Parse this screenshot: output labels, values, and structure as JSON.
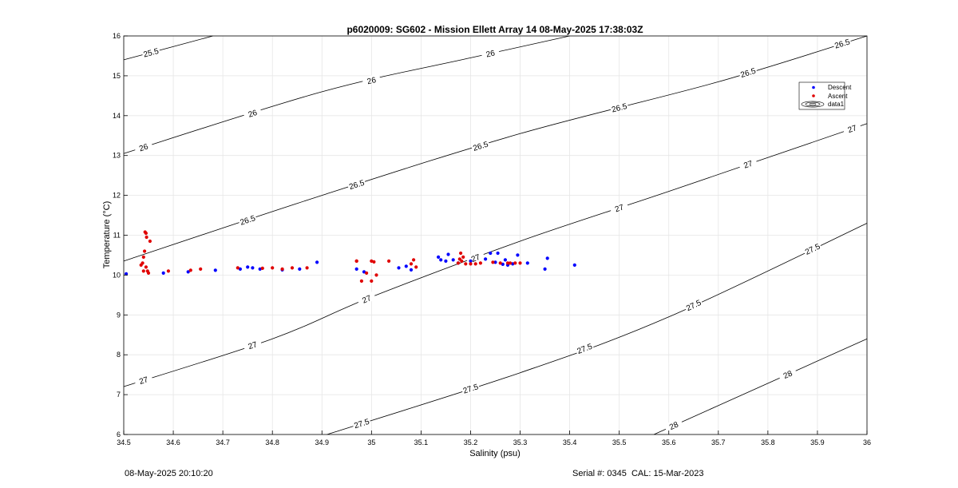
{
  "chart_data": {
    "type": "scatter",
    "title": "p6020009: SG602 - Mission Ellett Array 14 08-May-2025 17:38:03Z",
    "xlabel": "Salinity (psu)",
    "ylabel": "Temperature (°C)",
    "xlim": [
      34.5,
      36
    ],
    "ylim": [
      6,
      16
    ],
    "xticks": [
      34.5,
      34.6,
      34.7,
      34.8,
      34.9,
      35,
      35.1,
      35.2,
      35.3,
      35.4,
      35.5,
      35.6,
      35.7,
      35.8,
      35.9,
      36
    ],
    "xtick_labels": [
      "34.5",
      "34.6",
      "34.7",
      "34.8",
      "34.9",
      "35",
      "35.1",
      "35.2",
      "35.3",
      "35.4",
      "35.5",
      "35.6",
      "35.7",
      "35.8",
      "35.9",
      "36"
    ],
    "yticks": [
      6,
      7,
      8,
      9,
      10,
      11,
      12,
      13,
      14,
      15,
      16
    ],
    "ytick_labels": [
      "6",
      "7",
      "8",
      "9",
      "10",
      "11",
      "12",
      "13",
      "14",
      "15",
      "16"
    ],
    "grid": true,
    "legend": {
      "location": "top-right",
      "entries": [
        "Descent",
        "Ascent",
        "data1"
      ]
    },
    "colors": {
      "descent": "#0000ff",
      "ascent": "#e00000",
      "contour": "#000000",
      "grid": "#e6e6e6"
    },
    "contours": [
      {
        "label": "25.5",
        "value": 25.5,
        "points": [
          [
            34.5,
            15.4
          ],
          [
            34.68,
            16
          ]
        ],
        "label_at": [
          [
            34.555,
            15.55
          ]
        ]
      },
      {
        "label": "26",
        "value": 26,
        "points": [
          [
            34.5,
            13.05
          ],
          [
            34.9,
            14.6
          ],
          [
            35.2,
            15.45
          ],
          [
            35.4,
            16
          ]
        ],
        "label_at": [
          [
            34.54,
            13.15
          ],
          [
            34.76,
            14.05
          ],
          [
            35.0,
            14.9
          ],
          [
            35.24,
            15.7
          ]
        ]
      },
      {
        "label": "26.5",
        "value": 26.5,
        "points": [
          [
            34.5,
            10.35
          ],
          [
            34.9,
            12.0
          ],
          [
            35.3,
            13.55
          ],
          [
            35.7,
            14.85
          ],
          [
            36,
            16
          ]
        ],
        "label_at": [
          [
            34.75,
            11.45
          ],
          [
            34.97,
            12.4
          ],
          [
            35.22,
            13.3
          ],
          [
            35.5,
            14.15
          ],
          [
            35.76,
            14.95
          ],
          [
            35.95,
            15.8
          ]
        ]
      },
      {
        "label": "27",
        "value": 27,
        "points": [
          [
            34.5,
            7.2
          ],
          [
            34.8,
            8.4
          ],
          [
            35.0,
            9.45
          ],
          [
            35.3,
            10.85
          ],
          [
            35.6,
            12.1
          ],
          [
            36,
            13.8
          ]
        ],
        "label_at": [
          [
            34.54,
            7.35
          ],
          [
            34.76,
            8.5
          ],
          [
            34.99,
            9.65
          ],
          [
            35.21,
            10.65
          ],
          [
            35.5,
            11.65
          ],
          [
            35.76,
            12.6
          ],
          [
            35.97,
            13.45
          ]
        ]
      },
      {
        "label": "27.5",
        "value": 27.5,
        "points": [
          [
            34.91,
            6
          ],
          [
            35.3,
            7.55
          ],
          [
            35.6,
            8.95
          ],
          [
            36,
            11.3
          ]
        ],
        "label_at": [
          [
            34.98,
            6.3
          ],
          [
            35.2,
            7.0
          ],
          [
            35.43,
            8.05
          ],
          [
            35.65,
            9.05
          ],
          [
            35.89,
            10.75
          ]
        ]
      },
      {
        "label": "28",
        "value": 28,
        "points": [
          [
            35.57,
            6
          ],
          [
            36,
            8.4
          ]
        ],
        "label_at": [
          [
            35.61,
            6.3
          ],
          [
            35.84,
            7.55
          ]
        ]
      }
    ],
    "series": [
      {
        "name": "Descent",
        "x": [
          34.505,
          34.58,
          34.63,
          34.685,
          34.735,
          34.75,
          34.76,
          34.775,
          34.82,
          34.855,
          34.89,
          34.97,
          34.985,
          35.055,
          35.07,
          35.08,
          35.135,
          35.14,
          35.15,
          35.155,
          35.165,
          35.175,
          35.2,
          35.23,
          35.24,
          35.25,
          35.255,
          35.265,
          35.27,
          35.275,
          35.285,
          35.295,
          35.315,
          35.35,
          35.355,
          35.41
        ],
        "y": [
          10.03,
          10.05,
          10.08,
          10.12,
          10.15,
          10.2,
          10.18,
          10.15,
          10.13,
          10.15,
          10.32,
          10.15,
          10.08,
          10.18,
          10.22,
          10.13,
          10.45,
          10.38,
          10.35,
          10.52,
          10.38,
          10.3,
          10.35,
          10.4,
          10.55,
          10.32,
          10.55,
          10.27,
          10.38,
          10.25,
          10.28,
          10.5,
          10.3,
          10.15,
          10.42,
          10.25
        ]
      },
      {
        "name": "Ascent",
        "x": [
          34.535,
          34.538,
          34.54,
          34.542,
          34.543,
          34.545,
          34.546,
          34.548,
          34.55,
          34.553,
          34.545,
          34.54,
          34.59,
          34.635,
          34.655,
          34.73,
          34.78,
          34.8,
          34.82,
          34.84,
          34.87,
          34.97,
          34.98,
          34.99,
          35.0,
          35.005,
          35.01,
          35.035,
          35.08,
          35.085,
          35.09,
          35.175,
          35.178,
          35.18,
          35.182,
          35.185,
          35.19,
          35.2,
          35.21,
          35.22,
          35.245,
          35.26,
          35.275,
          35.28,
          35.29,
          35.3,
          34.97,
          35.0
        ],
        "y": [
          10.25,
          10.3,
          10.45,
          10.6,
          11.08,
          11.05,
          10.95,
          10.1,
          10.05,
          10.85,
          10.2,
          10.1,
          10.1,
          10.12,
          10.15,
          10.18,
          10.17,
          10.18,
          10.15,
          10.18,
          10.18,
          10.35,
          9.85,
          10.05,
          9.85,
          10.33,
          10.0,
          10.35,
          10.28,
          10.38,
          10.2,
          10.3,
          10.4,
          10.55,
          10.35,
          10.45,
          10.28,
          10.28,
          10.28,
          10.3,
          10.32,
          10.3,
          10.3,
          10.3,
          10.3,
          10.3,
          10.35,
          10.35
        ]
      }
    ]
  },
  "footer": {
    "timestamp": "08-May-2025 20:10:20",
    "serial": "Serial #: 0345  CAL: 15-Mar-2023"
  }
}
